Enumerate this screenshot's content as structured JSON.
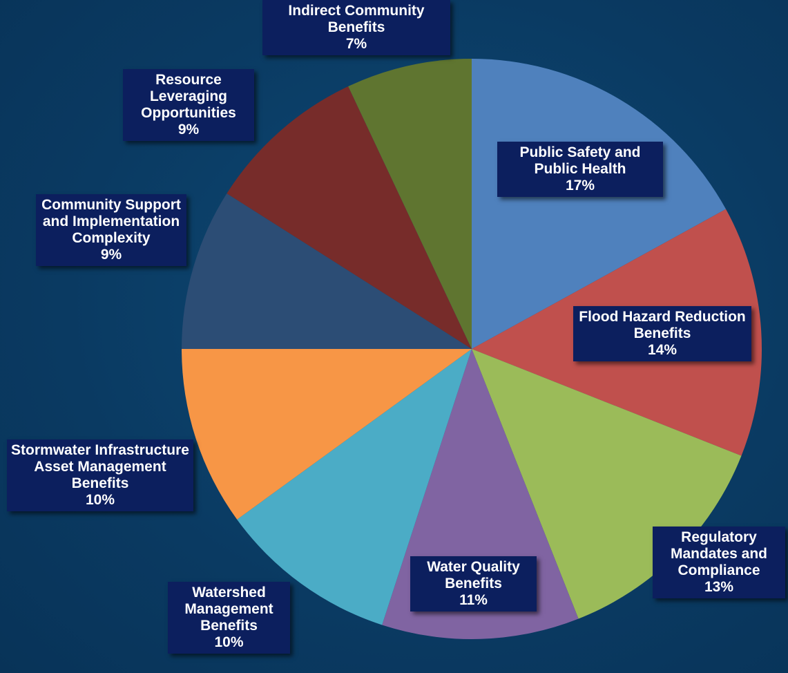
{
  "chart_data": {
    "type": "pie",
    "categories": [
      "Public Safety and Public Health",
      "Flood Hazard Reduction Benefits",
      "Regulatory Mandates and Compliance",
      "Water Quality Benefits",
      "Watershed Management Benefits",
      "Stormwater Infrastructure Asset Management Benefits",
      "Community Support and Implementation Complexity",
      "Resource Leveraging Opportunities",
      "Indirect Community Benefits"
    ],
    "values": [
      17,
      14,
      13,
      11,
      10,
      10,
      9,
      9,
      7
    ],
    "value_labels": [
      "17%",
      "14%",
      "13%",
      "11%",
      "10%",
      "10%",
      "9%",
      "9%",
      "7%"
    ],
    "colors": [
      "#4f81bd",
      "#c0504d",
      "#9bbb59",
      "#8064a2",
      "#4bacc6",
      "#f79646",
      "#2c4d75",
      "#772c2a",
      "#5f7530"
    ]
  }
}
